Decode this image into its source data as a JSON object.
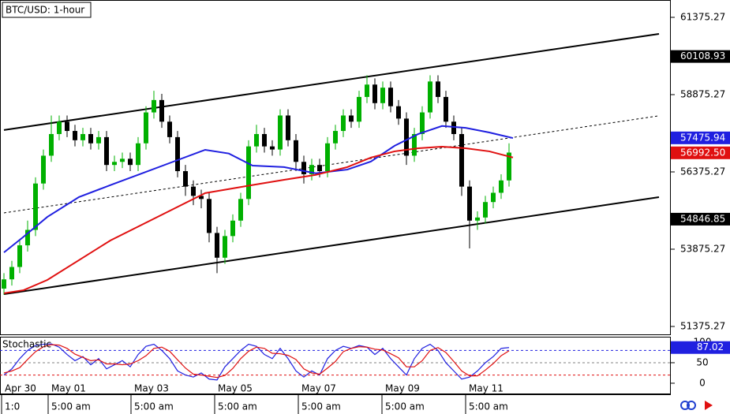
{
  "chart_data": {
    "type": "candlestick",
    "title": "BTC/USD: 1-hour",
    "xlim": [
      -0.5,
      84.5
    ],
    "ylim": [
      51095,
      61936
    ],
    "yticks": [
      61375.27,
      58875.27,
      56375.27,
      53875.27,
      51375.27
    ],
    "xticks": [
      {
        "value": -0.3,
        "label": "Apr 30"
      },
      {
        "value": 5.6,
        "label": "May 01"
      },
      {
        "value": 16.1,
        "label": "May 03"
      },
      {
        "value": 26.7,
        "label": "May 05"
      },
      {
        "value": 37.3,
        "label": "May 07"
      },
      {
        "value": 47.9,
        "label": "May 09"
      },
      {
        "value": 58.5,
        "label": "May 11"
      }
    ],
    "xticks_secondary": [
      {
        "value": -0.3,
        "label": "1:0"
      },
      {
        "value": 5.6,
        "label": "5:00 am"
      },
      {
        "value": 16.1,
        "label": "5:00 am"
      },
      {
        "value": 26.7,
        "label": "5:00 am"
      },
      {
        "value": 37.3,
        "label": "5:00 am"
      },
      {
        "value": 47.9,
        "label": "5:00 am"
      },
      {
        "value": 58.5,
        "label": "5:00 am"
      }
    ],
    "up_color": "#00b000",
    "down_color": "#000000",
    "open": [
      52600,
      52900,
      53300,
      54000,
      54500,
      56000,
      56900,
      57600,
      58000,
      57700,
      57400,
      57600,
      57300,
      57500,
      56600,
      56700,
      56800,
      56600,
      57300,
      58300,
      58700,
      58000,
      57500,
      56400,
      55900,
      55600,
      55500,
      54400,
      53600,
      54300,
      54800,
      55500,
      57200,
      57600,
      57200,
      57100,
      58200,
      57400,
      56700,
      56300,
      56600,
      56400,
      57300,
      57700,
      58200,
      58000,
      58800,
      59200,
      58600,
      59100,
      58500,
      58100,
      56900,
      57600,
      58300,
      59300,
      58800,
      58000,
      57600,
      55900,
      54800,
      54900,
      55400,
      55700,
      56100
    ],
    "high": [
      53100,
      53500,
      54200,
      54800,
      56200,
      57100,
      58200,
      58200,
      58200,
      57900,
      57800,
      57800,
      57700,
      57700,
      56900,
      57000,
      57000,
      57500,
      58500,
      59000,
      58900,
      58200,
      57700,
      56600,
      56100,
      55800,
      55700,
      54600,
      54500,
      55000,
      55700,
      57400,
      57900,
      57800,
      57400,
      58400,
      58400,
      57600,
      56900,
      56800,
      56800,
      57500,
      57900,
      58400,
      58400,
      59000,
      59500,
      59400,
      59300,
      59300,
      58700,
      58300,
      57800,
      58500,
      59500,
      59500,
      59000,
      58200,
      57800,
      56100,
      55100,
      55600,
      55900,
      56300,
      57300
    ],
    "low": [
      52400,
      52700,
      53100,
      53800,
      54300,
      55800,
      56700,
      57400,
      57500,
      57200,
      57200,
      57100,
      57100,
      56400,
      56400,
      56500,
      56400,
      56400,
      57100,
      58100,
      57800,
      57300,
      56200,
      55600,
      55300,
      55200,
      54100,
      53100,
      53400,
      54100,
      54600,
      55300,
      57000,
      57000,
      56900,
      56900,
      57200,
      56400,
      56000,
      56100,
      56200,
      56200,
      57100,
      57500,
      57800,
      57800,
      58600,
      58400,
      58400,
      58300,
      57900,
      56600,
      56700,
      57400,
      58100,
      58600,
      57800,
      57400,
      55600,
      53900,
      54500,
      54700,
      55200,
      55500,
      55900
    ],
    "close": [
      52900,
      53300,
      54000,
      54500,
      56000,
      56900,
      57600,
      58000,
      57700,
      57400,
      57600,
      57300,
      57500,
      56600,
      56700,
      56800,
      56600,
      57300,
      58300,
      58700,
      58000,
      57500,
      56400,
      55900,
      55600,
      55500,
      54400,
      53600,
      54300,
      54800,
      55500,
      57200,
      57600,
      57200,
      57100,
      58200,
      57400,
      56700,
      56300,
      56600,
      56400,
      57300,
      57700,
      58200,
      58000,
      58800,
      59200,
      58600,
      59100,
      58500,
      58100,
      56900,
      57600,
      58300,
      59300,
      58800,
      58000,
      57600,
      55900,
      54800,
      54900,
      55400,
      55700,
      56100,
      57000
    ],
    "moving_averages": {
      "x": [
        0,
        2.5,
        5.5,
        9.5,
        13.5,
        17.5,
        21.5,
        25.5,
        28.5,
        31.5,
        35.5,
        39.5,
        43.5,
        46.5,
        49.5,
        52.5,
        55.5,
        58.5,
        61.5,
        64.5
      ],
      "series": [
        {
          "color": "#2020e0",
          "values": [
            53770,
            54280,
            54920,
            55560,
            55950,
            56330,
            56710,
            57090,
            56970,
            56580,
            56530,
            56330,
            56450,
            56710,
            57220,
            57600,
            57860,
            57800,
            57650,
            57470
          ]
        },
        {
          "color": "#e01010",
          "values": [
            52450,
            52550,
            52880,
            53520,
            54160,
            54670,
            55180,
            55690,
            55820,
            55950,
            56120,
            56280,
            56530,
            56840,
            57040,
            57140,
            57190,
            57140,
            57040,
            56840
          ]
        }
      ]
    },
    "trendlines": [
      {
        "x": [
          0,
          83
        ],
        "values": [
          57730,
          60840
        ],
        "style": "solid"
      },
      {
        "x": [
          0,
          83
        ],
        "values": [
          55050,
          58190
        ],
        "style": "dotted"
      },
      {
        "x": [
          0,
          83
        ],
        "values": [
          52420,
          55560
        ],
        "style": "solid"
      }
    ],
    "price_markers": [
      {
        "value": 60108.93,
        "color": "#000000"
      },
      {
        "value": 57475.94,
        "color": "#2020e0"
      },
      {
        "value": 56992.5,
        "label": "56992.50",
        "color": "#e01010"
      },
      {
        "value": 54846.85,
        "color": "#000000"
      }
    ],
    "stochastic": {
      "title": "Stochastic",
      "ylim": [
        -27,
        111.5
      ],
      "yticks": [
        100,
        50,
        0
      ],
      "levels": [
        {
          "value": 80,
          "color": "#2020e0"
        },
        {
          "value": 50,
          "color": "#808080"
        },
        {
          "value": 20,
          "color": "#e01010"
        }
      ],
      "marker_color": "#2020e0",
      "series": [
        {
          "color": "#2020e0",
          "values": [
            20,
            35,
            60,
            80,
            92,
            95,
            96,
            88,
            70,
            55,
            65,
            45,
            60,
            35,
            45,
            55,
            40,
            70,
            90,
            95,
            80,
            60,
            30,
            20,
            15,
            25,
            10,
            8,
            40,
            60,
            80,
            95,
            90,
            70,
            60,
            85,
            60,
            30,
            15,
            30,
            20,
            60,
            80,
            90,
            85,
            92,
            88,
            70,
            85,
            60,
            40,
            20,
            60,
            85,
            95,
            80,
            50,
            30,
            10,
            15,
            30,
            50,
            65,
            85,
            87.02
          ]
        },
        {
          "color": "#e01010",
          "values": [
            25,
            30,
            38,
            58,
            77,
            89,
            94,
            93,
            85,
            71,
            63,
            55,
            57,
            47,
            47,
            45,
            47,
            55,
            67,
            85,
            88,
            78,
            57,
            37,
            22,
            20,
            17,
            14,
            19,
            36,
            60,
            78,
            88,
            85,
            73,
            72,
            68,
            58,
            35,
            25,
            22,
            37,
            53,
            77,
            85,
            89,
            88,
            83,
            81,
            72,
            62,
            40,
            40,
            55,
            80,
            87,
            75,
            53,
            30,
            18,
            18,
            32,
            48,
            67,
            79
          ]
        }
      ]
    }
  }
}
